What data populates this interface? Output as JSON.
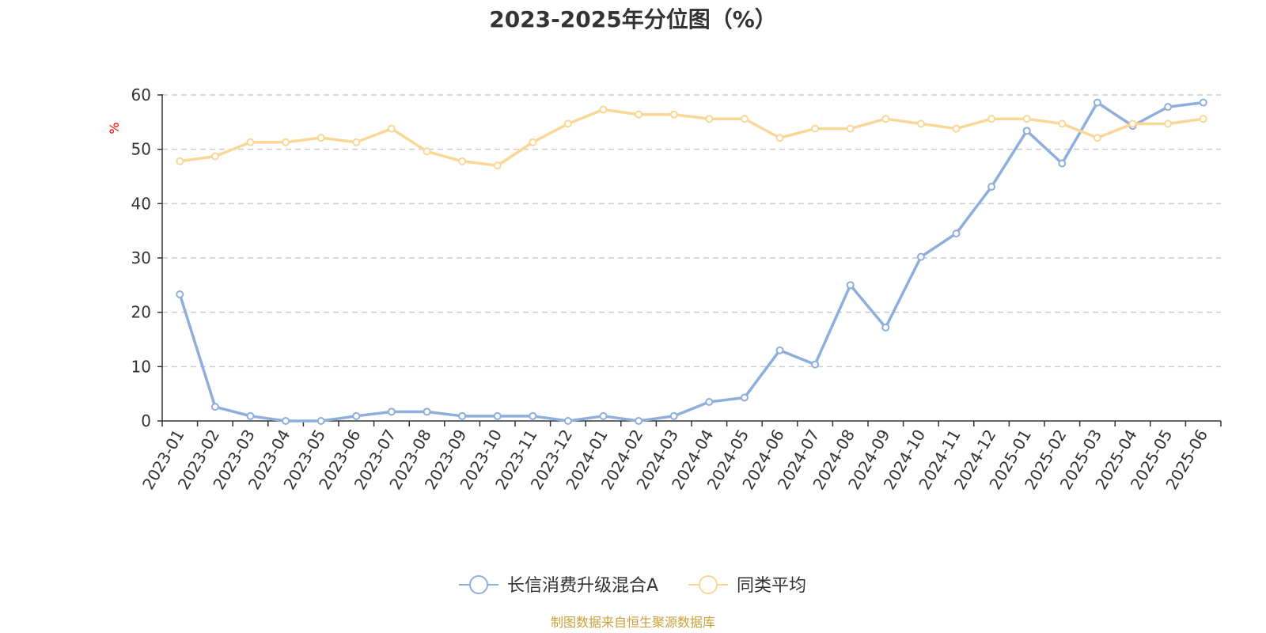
{
  "chart_data": {
    "type": "line",
    "title": "2023-2025年分位图（%）",
    "ylabel": "%",
    "ylim": [
      0,
      60
    ],
    "y_ticks": [
      0,
      10,
      20,
      30,
      40,
      50,
      60
    ],
    "grid": true,
    "legend_position": "bottom",
    "categories": [
      "2023-01",
      "2023-02",
      "2023-03",
      "2023-04",
      "2023-05",
      "2023-06",
      "2023-07",
      "2023-08",
      "2023-09",
      "2023-10",
      "2023-11",
      "2023-12",
      "2024-01",
      "2024-02",
      "2024-03",
      "2024-04",
      "2024-05",
      "2024-06",
      "2024-07",
      "2024-08",
      "2024-09",
      "2024-10",
      "2024-11",
      "2024-12",
      "2025-01",
      "2025-02",
      "2025-03",
      "2025-04",
      "2025-05",
      "2025-06"
    ],
    "series": [
      {
        "name": "长信消费升级混合A",
        "color": "#8eaedb",
        "values": [
          23.3,
          2.6,
          0.9,
          0.0,
          0.0,
          0.9,
          1.7,
          1.7,
          0.9,
          0.9,
          0.9,
          0.0,
          0.9,
          0.0,
          0.9,
          3.5,
          4.3,
          13.0,
          10.4,
          25.0,
          17.2,
          30.2,
          34.5,
          43.1,
          53.4,
          47.4,
          58.6,
          54.3,
          57.8,
          58.6
        ]
      },
      {
        "name": "同类平均",
        "color": "#f9d897",
        "values": [
          47.8,
          48.7,
          51.3,
          51.3,
          52.1,
          51.3,
          53.8,
          49.6,
          47.8,
          47.0,
          51.3,
          54.7,
          57.3,
          56.4,
          56.4,
          55.6,
          55.6,
          52.1,
          53.8,
          53.8,
          55.6,
          54.7,
          53.8,
          55.6,
          55.6,
          54.7,
          52.1,
          54.7,
          54.7,
          55.6
        ]
      }
    ]
  },
  "unit_color": "#ff0000",
  "source_text": "制图数据来自恒生聚源数据库",
  "source_color": "#c9a13c"
}
